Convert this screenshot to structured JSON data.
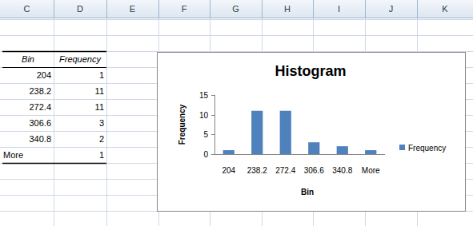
{
  "chart_data": {
    "type": "bar",
    "title": "Histogram",
    "x_label": "Bin",
    "y_label": "Frequency",
    "categories": [
      "204",
      "238.2",
      "272.4",
      "306.6",
      "340.8",
      "More"
    ],
    "series": [
      {
        "name": "Frequency",
        "color": "#4f81bd",
        "values": [
          1,
          11,
          11,
          3,
          2,
          1
        ]
      }
    ],
    "ylim": [
      0,
      15
    ],
    "yticks": [
      0,
      5,
      10,
      15
    ],
    "grid": false,
    "legend": "right"
  },
  "sheet": {
    "columns": [
      "C",
      "D",
      "E",
      "F",
      "G",
      "H",
      "I",
      "J",
      "K"
    ],
    "table": {
      "header": [
        "Bin",
        "Frequency"
      ],
      "rows": [
        [
          204,
          1
        ],
        [
          238.2,
          11
        ],
        [
          272.4,
          11
        ],
        [
          306.6,
          3
        ],
        [
          340.8,
          2
        ],
        [
          "More",
          1
        ]
      ]
    }
  }
}
